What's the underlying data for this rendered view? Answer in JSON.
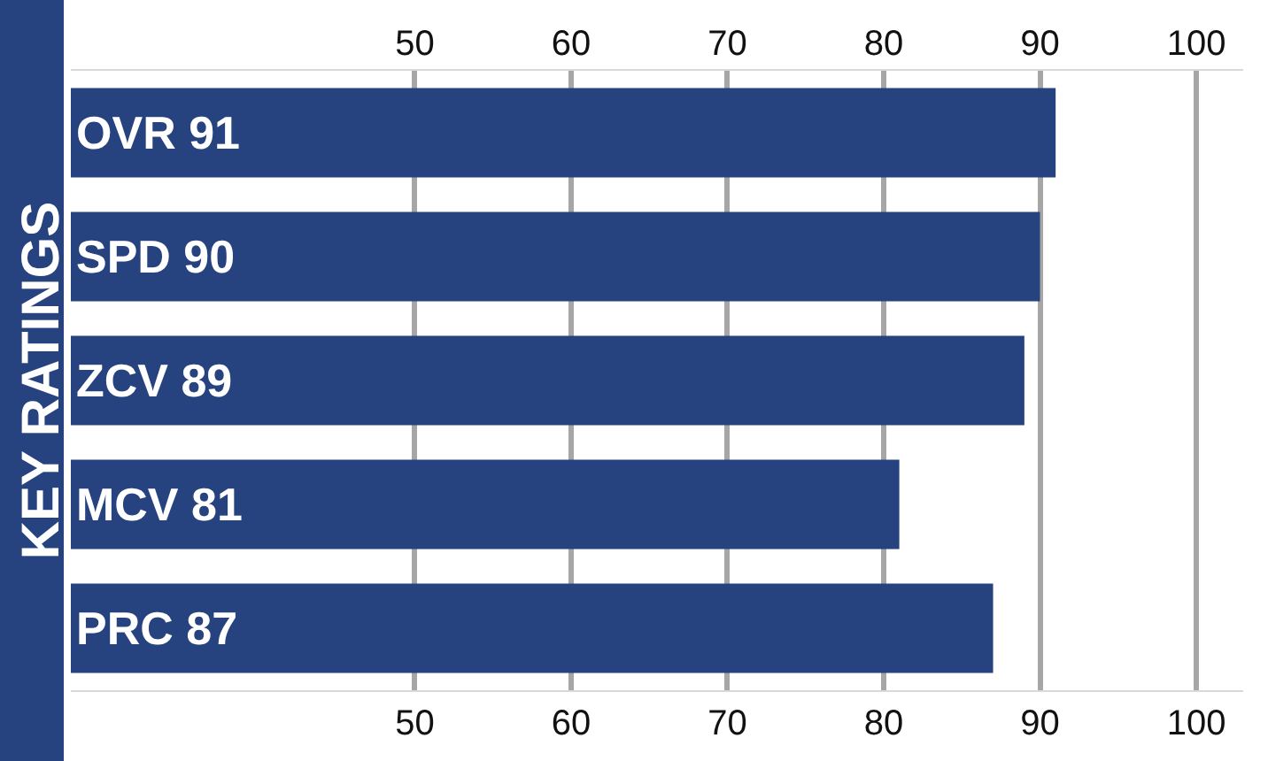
{
  "chart_data": {
    "type": "bar",
    "orientation": "horizontal",
    "ylabel": "KEY RATINGS",
    "categories": [
      "OVR 91",
      "SPD 90",
      "ZCV 89",
      "MCV 81",
      "PRC 87"
    ],
    "values": [
      91,
      90,
      89,
      81,
      87
    ],
    "color": "#27437f",
    "xlim": [
      28,
      103
    ],
    "xticks": [
      50,
      60,
      70,
      80,
      90,
      100
    ],
    "x2lim": [
      28,
      103
    ],
    "x2ticks": [
      50,
      60,
      70,
      80,
      90,
      100
    ],
    "grid": "x",
    "legend": false
  }
}
